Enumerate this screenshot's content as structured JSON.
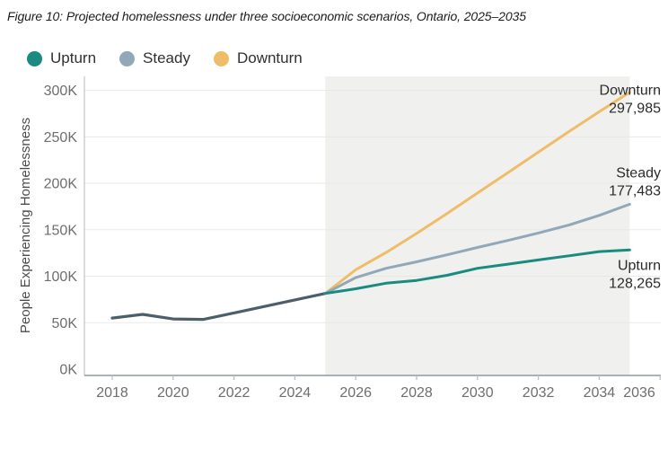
{
  "figure": {
    "title": "Figure 10: Projected homelessness under three socioeconomic scenarios, Ontario, 2025–2035"
  },
  "legend": {
    "items": [
      {
        "label": "Upturn",
        "color": "#1b8a80"
      },
      {
        "label": "Steady",
        "color": "#91a8b8"
      },
      {
        "label": "Downturn",
        "color": "#efbd68"
      }
    ]
  },
  "chart_data": {
    "type": "line",
    "title": "Figure 10: Projected homelessness under three socioeconomic scenarios, Ontario, 2025–2035",
    "xlabel": "",
    "ylabel": "People Experiencing Homelessness",
    "xlim": [
      2017.2,
      2036.3
    ],
    "ylim": [
      0,
      300000
    ],
    "grid": "horizontal",
    "legend_position": "top-left",
    "x_ticks": [
      2018,
      2020,
      2022,
      2024,
      2026,
      2028,
      2030,
      2032,
      2034,
      2036
    ],
    "y_ticks": [
      {
        "value": 0,
        "label": "0K"
      },
      {
        "value": 50000,
        "label": "50K"
      },
      {
        "value": 100000,
        "label": "100K"
      },
      {
        "value": 150000,
        "label": "150K"
      },
      {
        "value": 200000,
        "label": "200K"
      },
      {
        "value": 250000,
        "label": "250K"
      },
      {
        "value": 300000,
        "label": "300K"
      }
    ],
    "projection_band": {
      "from": 2025,
      "to": 2035,
      "color": "#f0f0ee"
    },
    "series": [
      {
        "name": "Historical",
        "color": "#4d5e6b",
        "width": 3.2,
        "x": [
          2018,
          2019,
          2020,
          2021,
          2022,
          2023,
          2024,
          2025
        ],
        "values": [
          55000,
          59000,
          54000,
          53500,
          60500,
          67500,
          74500,
          81515
        ]
      },
      {
        "name": "Downturn",
        "color": "#efbd68",
        "width": 3,
        "x": [
          2025,
          2026,
          2027,
          2028,
          2029,
          2030,
          2031,
          2032,
          2033,
          2034,
          2035
        ],
        "values": [
          81515,
          107000,
          125500,
          146000,
          167500,
          189500,
          211500,
          233500,
          255500,
          277000,
          297985
        ]
      },
      {
        "name": "Steady",
        "color": "#91a8b8",
        "width": 3,
        "x": [
          2025,
          2026,
          2027,
          2028,
          2029,
          2030,
          2031,
          2032,
          2033,
          2034,
          2035
        ],
        "values": [
          81515,
          98500,
          108500,
          115500,
          123000,
          131000,
          138500,
          146500,
          155000,
          165500,
          177483
        ]
      },
      {
        "name": "Upturn",
        "color": "#1b8a80",
        "width": 3,
        "x": [
          2025,
          2026,
          2027,
          2028,
          2029,
          2030,
          2031,
          2032,
          2033,
          2034,
          2035
        ],
        "values": [
          81515,
          86500,
          92500,
          95500,
          101000,
          108500,
          113000,
          117500,
          122000,
          126500,
          128265
        ]
      }
    ],
    "annotations": [
      {
        "series": "Downturn",
        "label": "Downturn",
        "value": "297,985",
        "position": "end"
      },
      {
        "series": "Steady",
        "label": "Steady",
        "value": "177,483",
        "position": "above"
      },
      {
        "series": "Upturn",
        "label": "Upturn",
        "value": "128,265",
        "position": "below"
      }
    ]
  }
}
